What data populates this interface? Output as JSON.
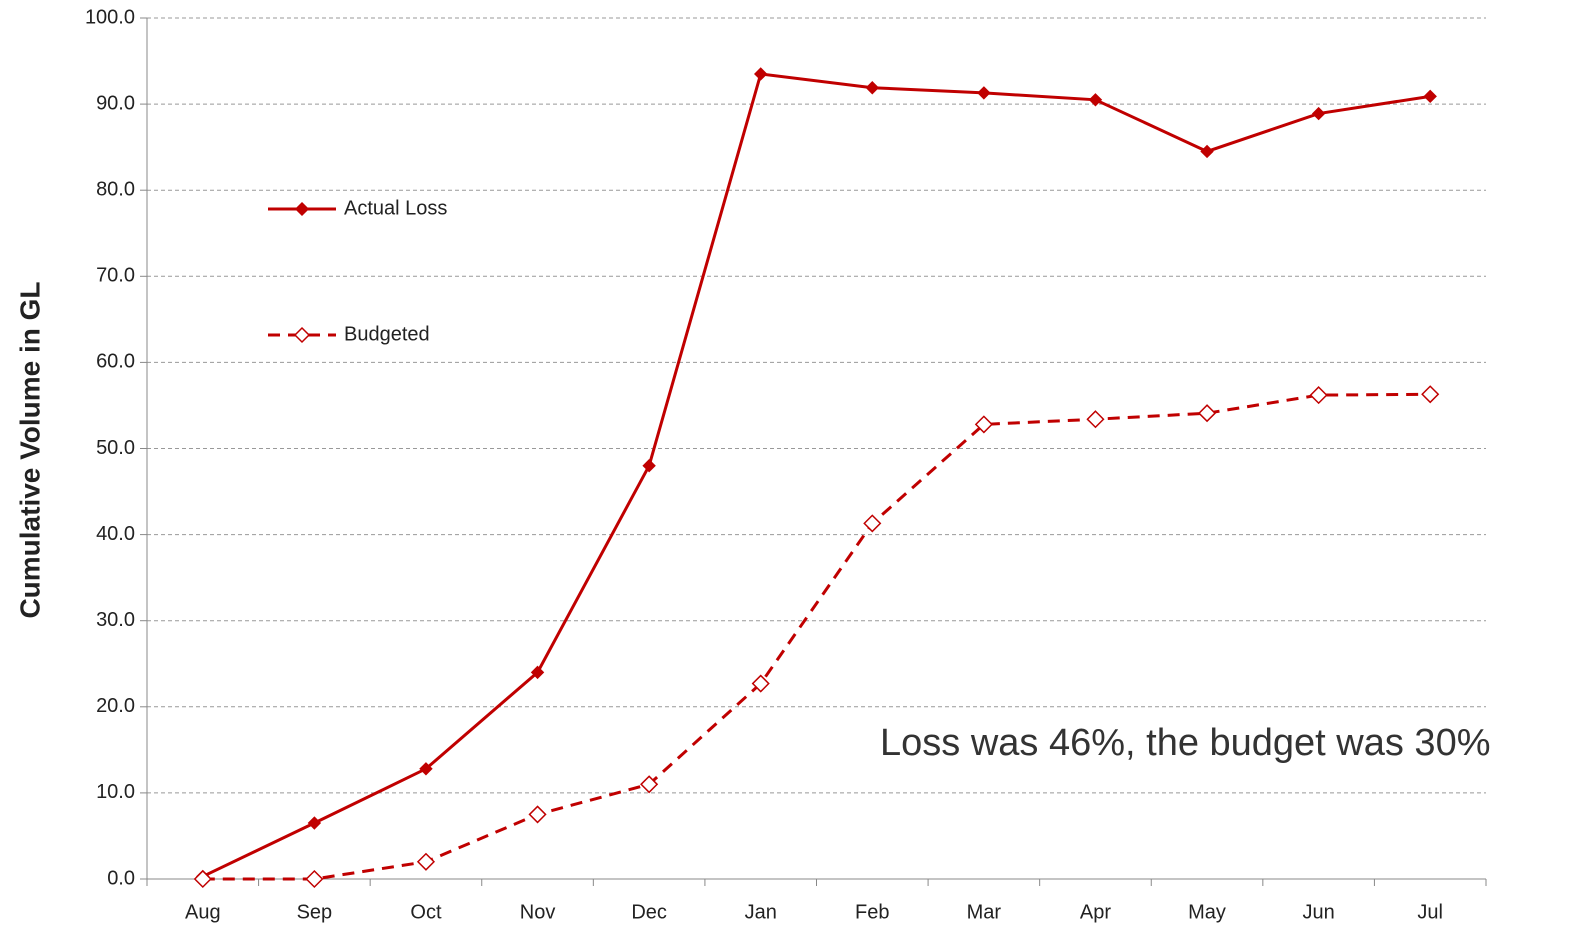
{
  "chart_data": {
    "type": "line",
    "ylabel": "Cumulative Volume in GL",
    "annotation": "Loss was 46%, the budget was 30%",
    "categories": [
      "Aug",
      "Sep",
      "Oct",
      "Nov",
      "Dec",
      "Jan",
      "Feb",
      "Mar",
      "Apr",
      "May",
      "Jun",
      "Jul"
    ],
    "series": [
      {
        "name": "Actual Loss",
        "color": "#c00000",
        "values": [
          0.3,
          6.5,
          12.8,
          24.0,
          48.0,
          93.5,
          91.9,
          91.3,
          90.5,
          84.5,
          88.9,
          90.9
        ]
      },
      {
        "name": "Budgeted",
        "color": "#c00000",
        "values": [
          0.0,
          0.0,
          2.0,
          7.5,
          11.0,
          22.7,
          41.3,
          52.8,
          53.4,
          54.1,
          56.2,
          56.3
        ]
      }
    ],
    "ylim": [
      0,
      100
    ],
    "yticks": [
      {
        "value": 0,
        "label": "0.0"
      },
      {
        "value": 10,
        "label": "10.0"
      },
      {
        "value": 20,
        "label": "20.0"
      },
      {
        "value": 30,
        "label": "30.0"
      },
      {
        "value": 40,
        "label": "40.0"
      },
      {
        "value": 50,
        "label": "50.0"
      },
      {
        "value": 60,
        "label": "60.0"
      },
      {
        "value": 70,
        "label": "70.0"
      },
      {
        "value": 80,
        "label": "80.0"
      },
      {
        "value": 90,
        "label": "90.0"
      },
      {
        "value": 100,
        "label": "100.0"
      }
    ],
    "grid": true
  }
}
